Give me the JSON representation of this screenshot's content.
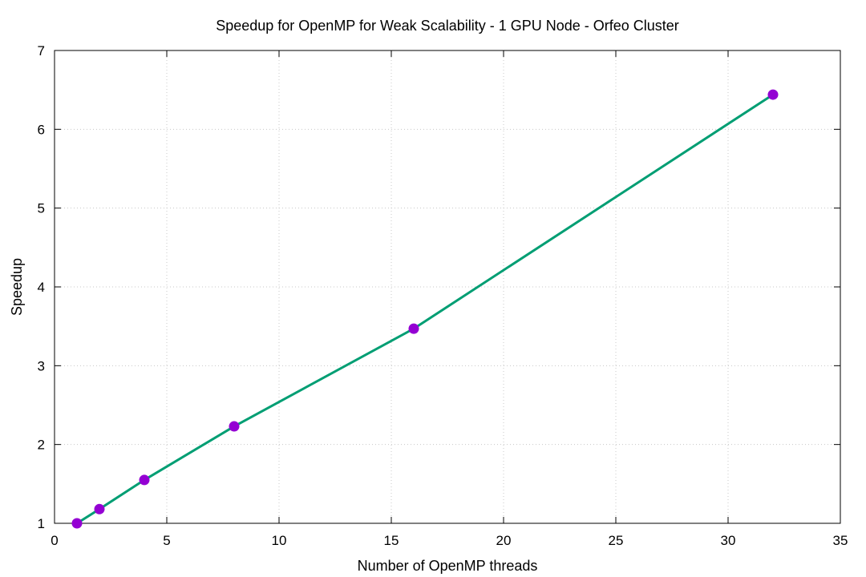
{
  "chart_data": {
    "type": "line",
    "title": "Speedup for OpenMP for Weak Scalability - 1 GPU Node - Orfeo Cluster",
    "xlabel": "Number of OpenMP threads",
    "ylabel": "Speedup",
    "xlim": [
      0,
      35
    ],
    "ylim": [
      1,
      7
    ],
    "xticks": [
      0,
      5,
      10,
      15,
      20,
      25,
      30,
      35
    ],
    "yticks": [
      1,
      2,
      3,
      4,
      5,
      6,
      7
    ],
    "grid": true,
    "legend": "none",
    "series": [
      {
        "x": [
          1,
          2,
          4,
          8,
          16,
          32
        ],
        "y": [
          1.0,
          1.18,
          1.55,
          2.23,
          3.47,
          6.44
        ],
        "line_color": "#009e73",
        "marker_color": "#9400d3"
      }
    ]
  }
}
